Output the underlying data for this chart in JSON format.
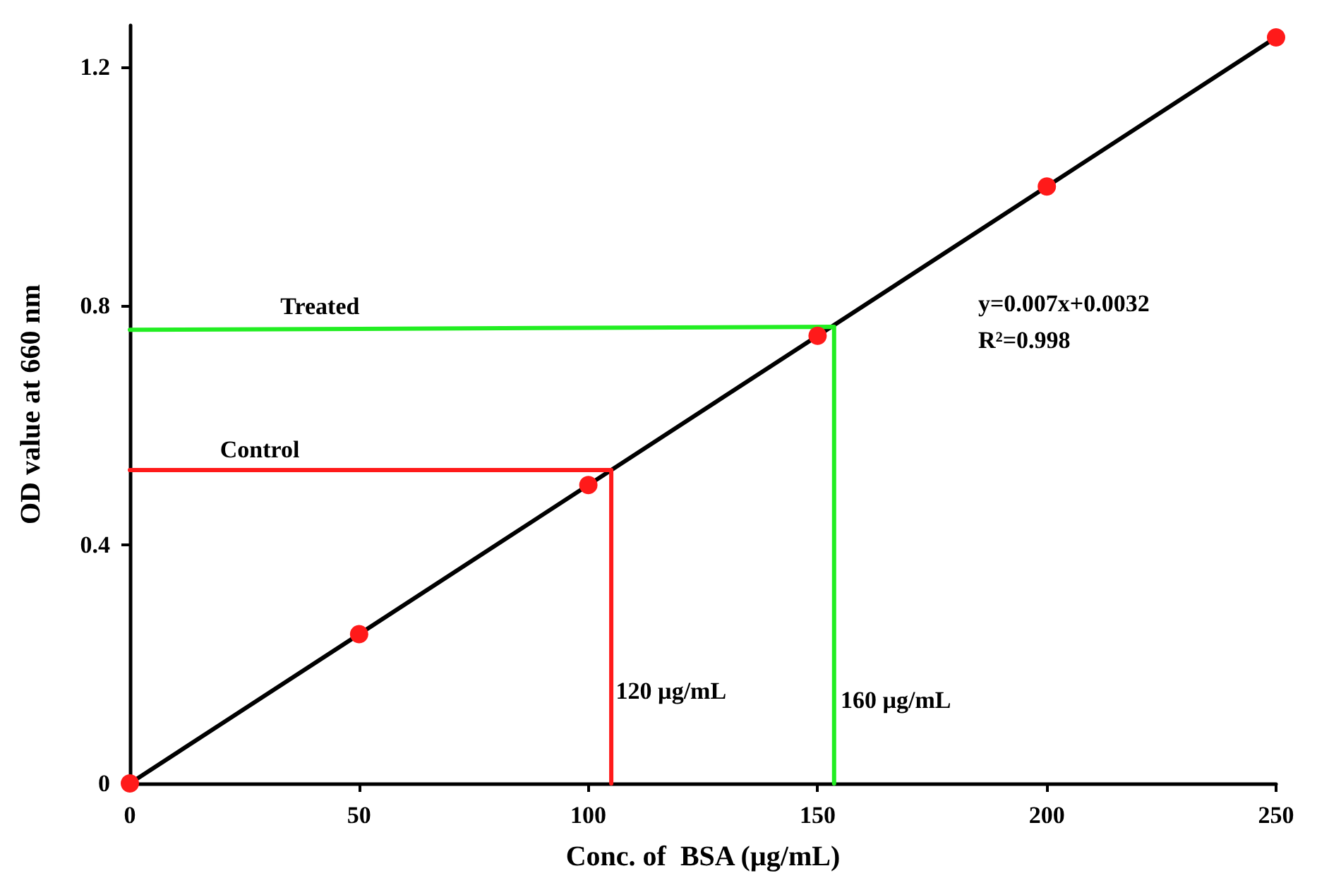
{
  "chart_data": {
    "type": "scatter",
    "xlabel": "Conc. of  BSA (µg/mL)",
    "ylabel": "OD value at 660 nm",
    "xlim": [
      0,
      250
    ],
    "xticks": [
      0,
      50,
      100,
      150,
      200,
      250
    ],
    "ylim": [
      0,
      1.27
    ],
    "yticks": [
      0,
      0.4,
      0.8,
      1.2
    ],
    "grid": false,
    "legend": false,
    "series": [
      {
        "type": "line",
        "color": "#000000",
        "marker": "none",
        "x": [
          0,
          250
        ],
        "values": [
          0,
          1.25
        ]
      },
      {
        "type": "line",
        "name": "Control",
        "color": "#ff1a1a",
        "marker": "none",
        "x": [
          0,
          105,
          105
        ],
        "values": [
          0.525,
          0.525,
          0
        ]
      },
      {
        "type": "line",
        "name": "Treated",
        "color": "#22ee22",
        "marker": "none",
        "x": [
          0,
          153.6,
          153.6
        ],
        "values": [
          0.76,
          0.765,
          0
        ]
      },
      {
        "color": "#ff1a1a",
        "marker": "circle",
        "x": [
          0,
          50,
          100,
          150,
          200,
          250
        ],
        "values": [
          0,
          0.25,
          0.5,
          0.75,
          1.0,
          1.25
        ]
      }
    ],
    "annotations": [
      {
        "text": "120 µg/mL",
        "x": 106,
        "y": 0.155
      },
      {
        "text": "160 µg/mL",
        "x": 155,
        "y": 0.14
      },
      "y=0.007x+0.0032",
      "R²=0.998"
    ]
  }
}
